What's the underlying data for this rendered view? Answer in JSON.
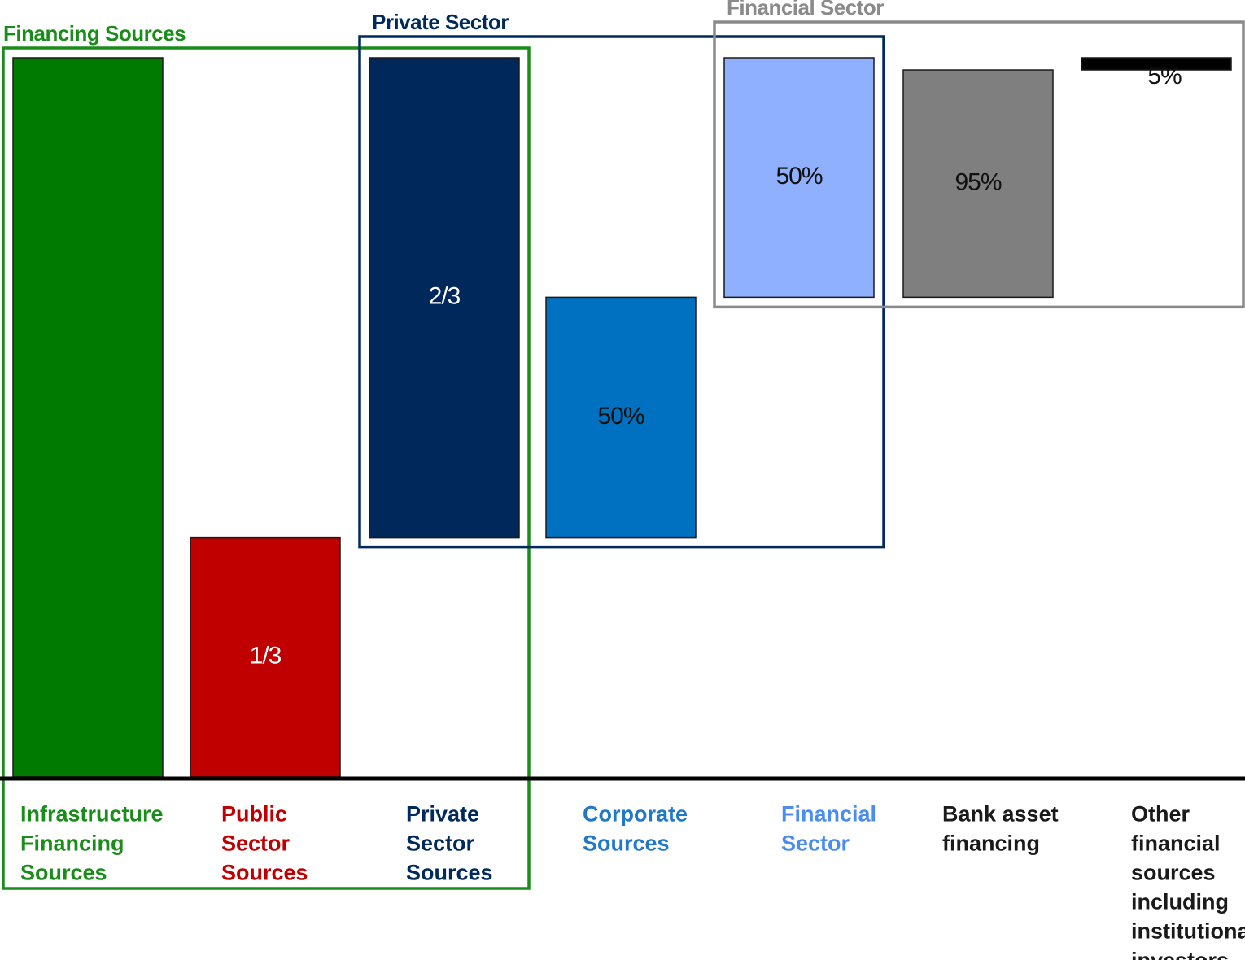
{
  "chart_data": {
    "type": "bar",
    "title": "",
    "xlabel": "",
    "ylabel": "",
    "categories": [
      "Infrastructure Financing Sources",
      "Public Sector Sources",
      "Private Sector Sources",
      "Corporate Sources",
      "Financial Sector",
      "Bank asset financing",
      "Other financial sources including institutional investors"
    ],
    "category_lines": [
      [
        "Infrastructure",
        "Financing",
        "Sources"
      ],
      [
        "Public",
        "Sector",
        "Sources"
      ],
      [
        "Private",
        "Sector",
        "Sources"
      ],
      [
        "Corporate",
        "Sources"
      ],
      [
        "Financial",
        "Sector"
      ],
      [
        "Bank asset",
        "financing"
      ],
      [
        "Other",
        "financial",
        "sources",
        "including",
        "institutional",
        "investors"
      ]
    ],
    "label_colors": [
      "#1a8c1a",
      "#c00000",
      "#002a5c",
      "#1f78c8",
      "#4a8cf0",
      "#1a1a1a",
      "#1a1a1a"
    ],
    "bar_colors": [
      "#007a00",
      "#c00000",
      "#00285a",
      "#0070c0",
      "#8fb0ff",
      "#7f7f7f",
      "#000000"
    ],
    "bar_text_colors": [
      "#ffffff",
      "#ffffff",
      "#ffffff",
      "#111111",
      "#111111",
      "#111111",
      "#111111"
    ],
    "bars": [
      {
        "bottom": 0,
        "top": 100,
        "label": ""
      },
      {
        "bottom": 0,
        "top": 33.3,
        "label": "1/3"
      },
      {
        "bottom": 33.3,
        "top": 100,
        "label": "2/3"
      },
      {
        "bottom": 33.3,
        "top": 66.7,
        "label": "50%"
      },
      {
        "bottom": 66.7,
        "top": 100,
        "label": "50%"
      },
      {
        "bottom": 66.7,
        "top": 98.3,
        "label": "95%"
      },
      {
        "bottom": 98.3,
        "top": 100,
        "label": "5%"
      }
    ],
    "groups": [
      {
        "title": "Financing Sources",
        "color": "#1a8c1a",
        "bars": [
          0,
          1,
          2
        ],
        "include_labels": true
      },
      {
        "title": "Private Sector",
        "color": "#002a5c",
        "bars": [
          2,
          3,
          4
        ],
        "include_labels": false
      },
      {
        "title": "Financial Sector",
        "color": "#8a8a8a",
        "bars": [
          4,
          5,
          6
        ],
        "include_labels": false
      }
    ],
    "ylim": [
      0,
      100
    ],
    "grid": false,
    "legend": "none"
  }
}
